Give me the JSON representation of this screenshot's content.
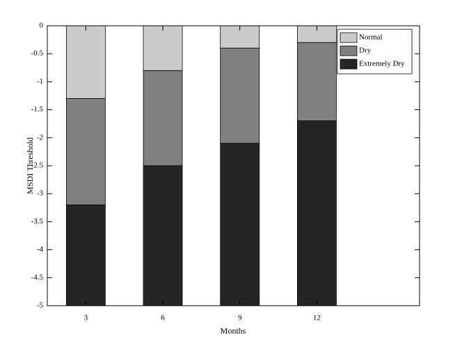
{
  "chart_data": {
    "type": "stacked-bar",
    "x_label": "Months",
    "y_label": "MSDI Threshold",
    "x": [
      3,
      6,
      9,
      12
    ],
    "series": [
      {
        "name": "Normal",
        "color": "#cccccc",
        "values": [
          -1.3,
          -0.8,
          -0.4,
          -0.3
        ]
      },
      {
        "name": "Dry",
        "color": "#808080",
        "values": [
          -1.9,
          -1.7,
          -1.7,
          -1.4
        ]
      },
      {
        "name": "Extremely Dry",
        "color": "#262626",
        "values": [
          -1.8,
          -2.5,
          -2.9,
          -3.3
        ]
      }
    ],
    "xlim": [
      1.5,
      16
    ],
    "xticks": [
      3,
      6,
      9,
      12
    ],
    "ylim": [
      -5,
      0
    ],
    "yticks": [
      0,
      -0.5,
      -1,
      -1.5,
      -2,
      -2.5,
      -3,
      -3.5,
      -4,
      -4.5,
      -5
    ],
    "legend": "upper-right"
  }
}
